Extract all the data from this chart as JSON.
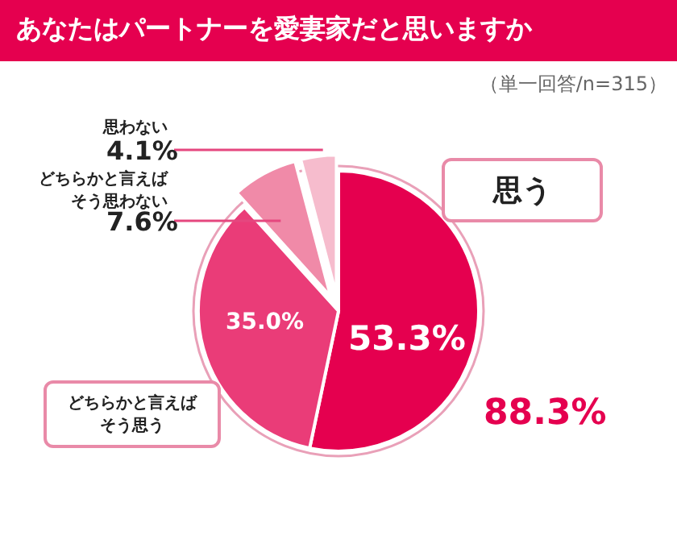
{
  "chart_data": {
    "type": "pie",
    "title": "あなたはパートナーを愛妻家だと思いますか",
    "subtitle": "（単一回答/n=315）",
    "categories": [
      "思う",
      "どちらかと言えばそう思う",
      "どちらかと言えばそう思わない",
      "思わない"
    ],
    "values": [
      53.3,
      35.0,
      7.6,
      4.1
    ],
    "value_labels": [
      "53.3%",
      "35.0%",
      "7.6%",
      "4.1%"
    ],
    "colors": [
      "#e5004f",
      "#ea3c78",
      "#f08aa8",
      "#f6bccd"
    ],
    "annotations": [
      "88.3%"
    ]
  }
}
